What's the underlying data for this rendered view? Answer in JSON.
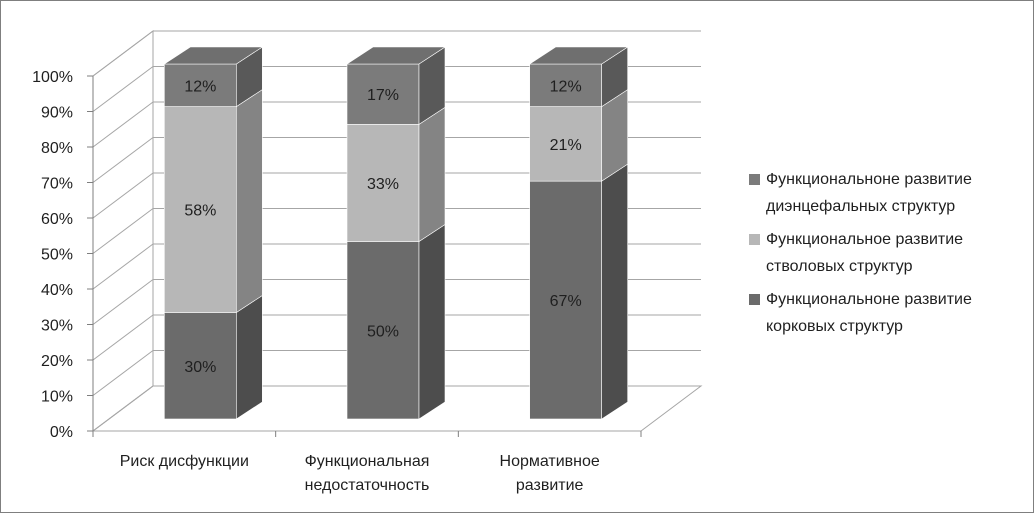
{
  "chart_data": {
    "type": "bar",
    "stacked": true,
    "percent_stacked": true,
    "three_d": true,
    "title": "",
    "xlabel": "",
    "ylabel": "",
    "ylim": [
      0,
      100
    ],
    "y_ticks": [
      "0%",
      "10%",
      "20%",
      "30%",
      "40%",
      "50%",
      "60%",
      "70%",
      "80%",
      "90%",
      "100%"
    ],
    "categories": [
      [
        "Риск дисфункции"
      ],
      [
        "Функциональная",
        "недостаточность"
      ],
      [
        "Нормативное",
        "развитие"
      ]
    ],
    "series": [
      {
        "name_lines": [
          "Функциональноне развитие",
          "корковых структур"
        ],
        "values": [
          30,
          50,
          67
        ],
        "labels": [
          "30%",
          "50%",
          "67%"
        ],
        "color": "#6b6b6b"
      },
      {
        "name_lines": [
          "Функциональное развитие",
          "стволовых структур"
        ],
        "values": [
          58,
          33,
          21
        ],
        "labels": [
          "58%",
          "33%",
          "21%"
        ],
        "color": "#b7b7b7"
      },
      {
        "name_lines": [
          "Функциональноне развитие",
          "диэнцефальных структур"
        ],
        "values": [
          12,
          17,
          12
        ],
        "labels": [
          "12%",
          "17%",
          "12%"
        ],
        "color": "#7b7b7b"
      }
    ],
    "legend_position": "right",
    "grid": true
  }
}
